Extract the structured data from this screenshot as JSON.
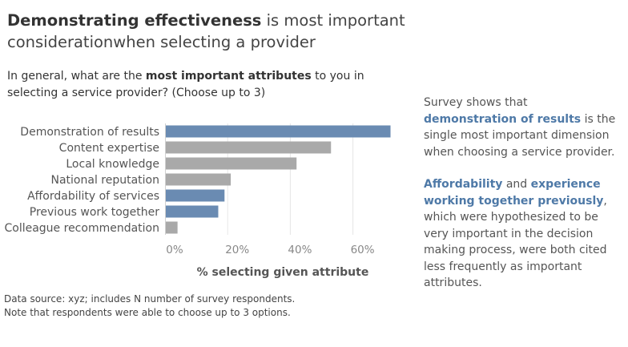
{
  "title": {
    "bold": "Demonstrating effectiveness",
    "rest": " is most important considerationwhen selecting a provider"
  },
  "question": {
    "part1": "In general, what are the ",
    "bold": "most important attributes",
    "part2": " to you in selecting a service provider? (Choose up to 3)"
  },
  "chart_data": {
    "type": "bar",
    "orientation": "horizontal",
    "categories": [
      "Demonstration of results",
      "Content expertise",
      "Local knowledge",
      "National reputation",
      "Affordability of services",
      "Previous work together",
      "Colleague recommendation"
    ],
    "values": [
      72,
      53,
      42,
      21,
      19,
      17,
      4
    ],
    "highlighted": [
      true,
      false,
      false,
      false,
      true,
      true,
      false
    ],
    "colors": {
      "highlight": "#6a8bb2",
      "default": "#a9a9a9"
    },
    "xlim": [
      0,
      80
    ],
    "xticks": [
      0,
      20,
      40,
      60
    ],
    "xtick_labels": [
      "0%",
      "20%",
      "40%",
      "60%"
    ],
    "xlabel": "% selecting given attribute",
    "grid": true
  },
  "footnote": {
    "line1": "Data source: xyz; includes N number of survey respondents.",
    "line2": "Note that respondents were able to choose up to 3 options."
  },
  "insight": {
    "p1_a": "Survey shows that ",
    "p1_b": "demonstration of results",
    "p1_c": " is the single most important dimension when choosing a service provider.",
    "p2_a": "Affordability",
    "p2_b": " and ",
    "p2_c": "experience working together previously",
    "p2_d": ", which were hypothesized to be very important in the decision making process, were both cited less frequently as important attributes."
  }
}
